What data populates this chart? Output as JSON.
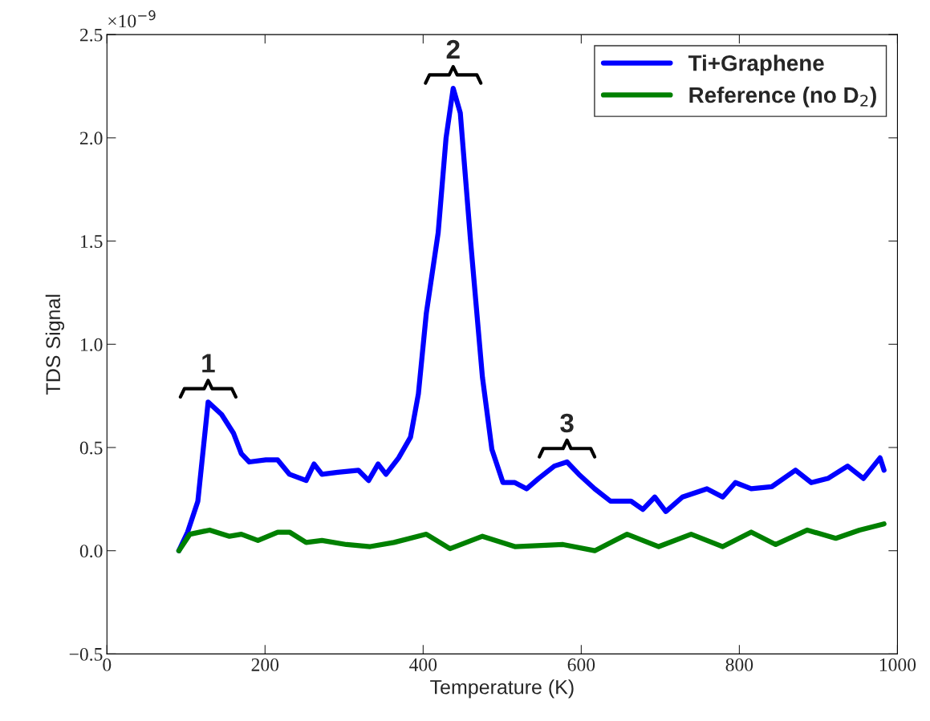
{
  "chart_data": {
    "type": "line",
    "xlabel": "Temperature (K)",
    "ylabel": "TDS Signal",
    "xlim": [
      0,
      1000
    ],
    "xticks": [
      0,
      200,
      400,
      600,
      800,
      1000
    ],
    "ylim": [
      -0.5,
      2.5
    ],
    "yticks": [
      {
        "value": -0.5,
        "label": "−0.5"
      },
      {
        "value": 0,
        "label": "0.0"
      },
      {
        "value": 0.5,
        "label": "0.5"
      },
      {
        "value": 1.0,
        "label": "1.0"
      },
      {
        "value": 1.5,
        "label": "1.5"
      },
      {
        "value": 2.0,
        "label": "2.0"
      },
      {
        "value": 2.5,
        "label": "2.5"
      }
    ],
    "grid": false,
    "legend": "top right",
    "series": [
      {
        "name": "Ti+Graphene",
        "color": "#0000ff",
        "x": [
          91,
          102,
          115,
          128,
          145,
          160,
          170,
          180,
          201,
          216,
          231,
          252,
          262,
          272,
          292,
          318,
          331,
          343,
          353,
          369,
          384,
          394,
          404,
          419,
          429,
          438,
          447,
          460,
          475,
          487,
          501,
          516,
          531,
          546,
          566,
          582,
          597,
          617,
          637,
          663,
          678,
          693,
          707,
          728,
          759,
          779,
          795,
          815,
          841,
          871,
          891,
          912,
          937,
          957,
          978,
          983
        ],
        "values": [
          0.0,
          0.09,
          0.24,
          0.72,
          0.66,
          0.57,
          0.47,
          0.43,
          0.44,
          0.44,
          0.37,
          0.34,
          0.42,
          0.37,
          0.38,
          0.39,
          0.34,
          0.42,
          0.37,
          0.45,
          0.55,
          0.76,
          1.15,
          1.54,
          2.0,
          2.24,
          2.12,
          1.5,
          0.84,
          0.49,
          0.33,
          0.33,
          0.3,
          0.35,
          0.41,
          0.43,
          0.37,
          0.3,
          0.24,
          0.24,
          0.2,
          0.26,
          0.19,
          0.26,
          0.3,
          0.26,
          0.33,
          0.3,
          0.31,
          0.39,
          0.33,
          0.35,
          0.41,
          0.35,
          0.45,
          0.39
        ]
      },
      {
        "name": "Reference (no D$_{2}$)",
        "color": "#008000",
        "x": [
          91,
          105,
          130,
          155,
          170,
          191,
          216,
          231,
          252,
          272,
          303,
          333,
          363,
          404,
          434,
          475,
          516,
          577,
          617,
          658,
          698,
          739,
          779,
          815,
          846,
          886,
          922,
          952,
          983
        ],
        "values": [
          0.0,
          0.08,
          0.1,
          0.07,
          0.08,
          0.05,
          0.09,
          0.09,
          0.04,
          0.05,
          0.03,
          0.02,
          0.04,
          0.08,
          0.01,
          0.07,
          0.02,
          0.03,
          0.0,
          0.08,
          0.02,
          0.08,
          0.02,
          0.09,
          0.03,
          0.1,
          0.06,
          0.1,
          0.13
        ]
      }
    ],
    "annotations": [
      "×10$^{−9}$",
      {
        "text": "1",
        "x": 128,
        "y": 0.72
      },
      {
        "text": "2",
        "x": 438,
        "y": 2.24
      },
      {
        "text": "3",
        "x": 582,
        "y": 0.43
      }
    ]
  }
}
